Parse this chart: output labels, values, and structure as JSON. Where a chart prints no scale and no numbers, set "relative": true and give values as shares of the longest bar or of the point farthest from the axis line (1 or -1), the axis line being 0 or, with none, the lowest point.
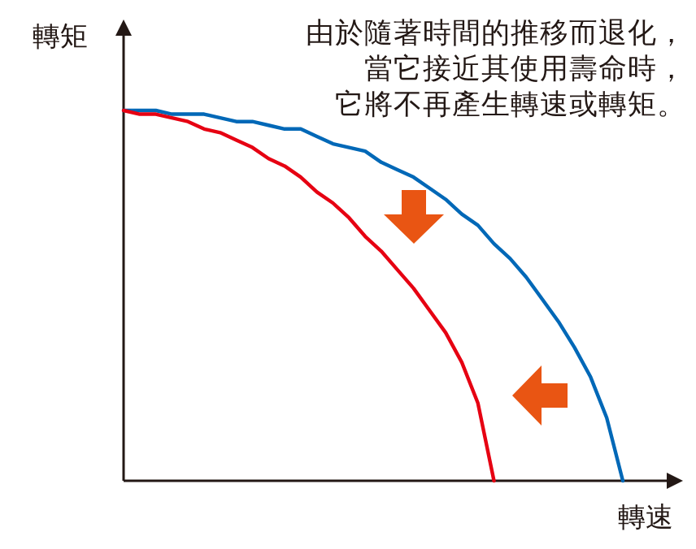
{
  "chart_data": {
    "type": "line",
    "relative": true,
    "xlabel": "轉速",
    "ylabel": "轉矩",
    "marker": "none",
    "annotations": [
      "由於隨著時間的推移而退化，",
      "當它接近其使用壽命時，",
      "它將不再產生轉速或轉矩。"
    ],
    "categories": [
      null,
      null,
      null,
      null,
      null,
      null,
      null,
      null,
      null,
      null,
      null,
      null,
      null,
      null,
      null,
      null,
      null,
      null,
      null,
      null,
      null,
      null,
      null,
      null,
      null,
      null,
      null,
      null,
      null,
      null,
      null,
      null
    ],
    "series": [
      {
        "color": "#0068b7",
        "values": [
          1,
          1,
          1,
          0.99,
          0.99,
          0.99,
          0.98,
          0.97,
          0.97,
          0.96,
          0.95,
          0.95,
          0.93,
          0.91,
          0.9,
          0.89,
          0.86,
          0.84,
          0.82,
          0.79,
          0.76,
          0.72,
          0.69,
          0.64,
          0.6,
          0.55,
          0.49,
          0.43,
          0.36,
          0.28,
          0.17,
          0
        ]
      },
      {
        "color": "#e60012",
        "values": [
          1,
          0.99,
          0.99,
          0.98,
          0.97,
          0.95,
          0.94,
          0.92,
          0.9,
          0.87,
          0.85,
          0.82,
          0.78,
          0.75,
          0.71,
          0.66,
          0.62,
          0.57,
          0.52,
          0.46,
          0.4,
          0.32,
          0.21,
          0,
          null,
          null,
          null,
          null,
          null,
          null,
          null,
          null
        ]
      }
    ]
  }
}
